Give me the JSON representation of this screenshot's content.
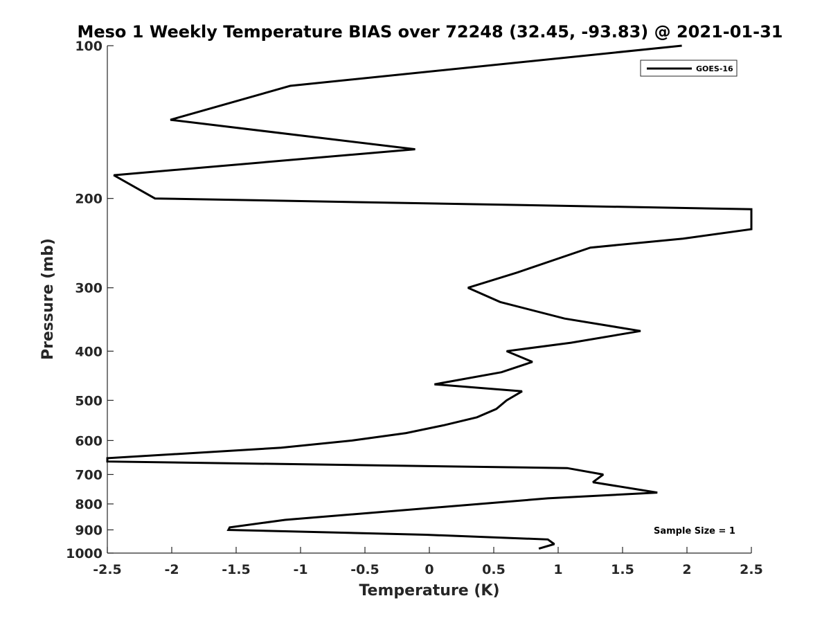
{
  "chart_data": {
    "type": "line",
    "title": "Meso 1 Weekly Temperature BIAS over 72248 (32.45, -93.83) @ 2021-01-31",
    "xlabel": "Temperature (K)",
    "ylabel": "Pressure (mb)",
    "xlim": [
      -2.5,
      2.5
    ],
    "ylim": [
      100,
      1000
    ],
    "yscale": "log",
    "yreversed": true,
    "grid": false,
    "x_ticks": [
      -2.5,
      -2,
      -1.5,
      -1,
      -0.5,
      0,
      0.5,
      1,
      1.5,
      2,
      2.5
    ],
    "x_tick_labels": [
      "-2.5",
      "-2",
      "-1.5",
      "-1",
      "-0.5",
      "0",
      "0.5",
      "1",
      "1.5",
      "2",
      "2.5"
    ],
    "y_ticks": [
      100,
      200,
      300,
      400,
      500,
      600,
      700,
      800,
      900,
      1000
    ],
    "y_tick_labels": [
      "100",
      "200",
      "300",
      "400",
      "500",
      "600",
      "700",
      "800",
      "900",
      "1000"
    ],
    "legend": {
      "placement": "top-right",
      "entries": [
        "GOES-16"
      ]
    },
    "annotation": "Sample Size = 1",
    "series": [
      {
        "name": "GOES-16",
        "color": "#000000",
        "points": [
          [
            1.96,
            100
          ],
          [
            -1.08,
            120
          ],
          [
            -2.01,
            140
          ],
          [
            -0.11,
            160
          ],
          [
            -2.45,
            180
          ],
          [
            -2.13,
            200
          ],
          [
            2.5,
            210
          ],
          [
            2.5,
            230
          ],
          [
            1.97,
            240
          ],
          [
            1.25,
            250
          ],
          [
            0.68,
            280
          ],
          [
            0.3,
            300
          ],
          [
            0.55,
            320
          ],
          [
            1.05,
            345
          ],
          [
            1.64,
            365
          ],
          [
            1.1,
            385
          ],
          [
            0.6,
            400
          ],
          [
            0.8,
            420
          ],
          [
            0.56,
            440
          ],
          [
            0.04,
            465
          ],
          [
            0.72,
            480
          ],
          [
            0.6,
            500
          ],
          [
            0.52,
            520
          ],
          [
            0.37,
            540
          ],
          [
            0.11,
            560
          ],
          [
            -0.18,
            580
          ],
          [
            -0.6,
            600
          ],
          [
            -1.15,
            620
          ],
          [
            -2.5,
            650
          ],
          [
            -2.5,
            660
          ],
          [
            1.07,
            680
          ],
          [
            1.35,
            700
          ],
          [
            1.27,
            725
          ],
          [
            1.77,
            760
          ],
          [
            0.92,
            780
          ],
          [
            -1.12,
            860
          ],
          [
            -1.55,
            890
          ],
          [
            -1.56,
            900
          ],
          [
            -0.03,
            920
          ],
          [
            0.92,
            940
          ],
          [
            0.97,
            960
          ],
          [
            0.85,
            980
          ]
        ]
      }
    ]
  }
}
